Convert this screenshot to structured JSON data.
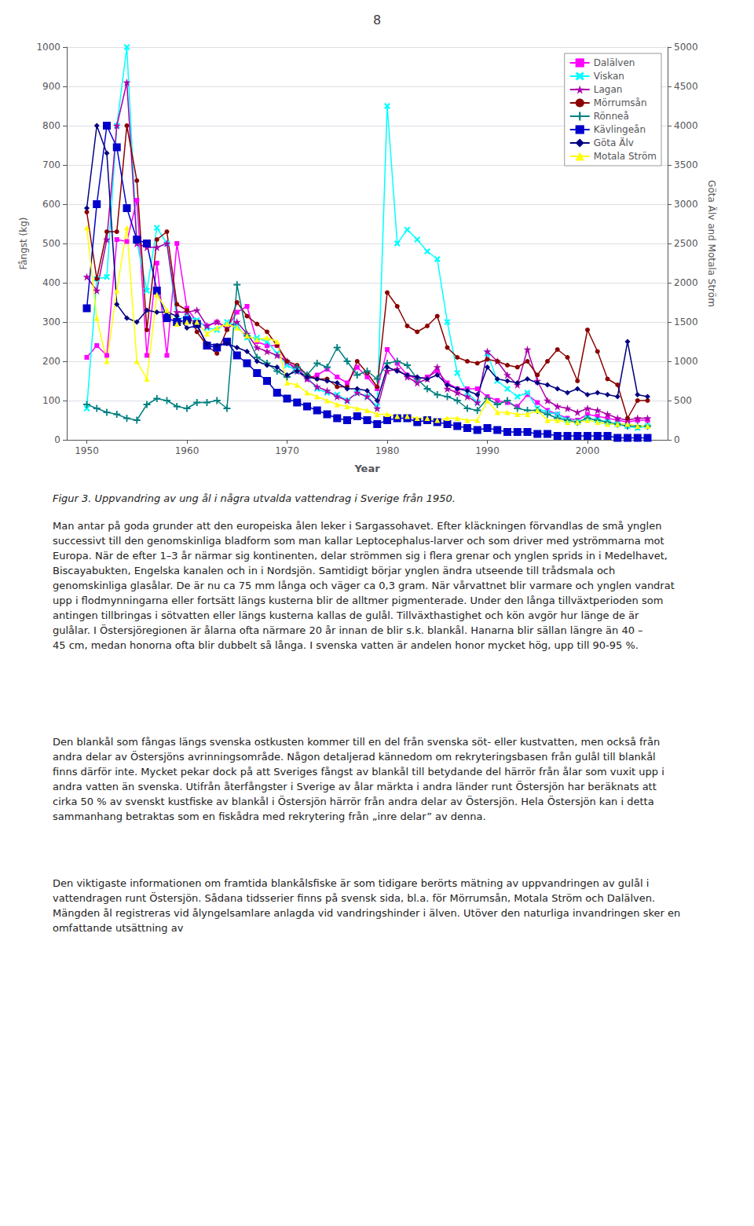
{
  "chart_data": {
    "type": "line",
    "title": "8",
    "annotations": [
      "Figur 3. Uppvandring av ung ål i några utvalda vattendrag i Sverige från 1950.",
      "Man antar på goda grunder att den europeiska ålen leker i Sargassohavet. Efter kläckningen förvandlas de små ynglen successivt till den genomskinliga bladform som man kallar Leptocephalus-larver och som driver med yströmmarna mot Europa. När de efter 1–3 år närmar sig kontinenten, delar strömmen sig i flera grenar och ynglen sprids in i Medelhavet, Biscayabukten, Engelska kanalen och in i Nordsjön. Samtidigt börjar ynglen ändra utseende till trådsmala och genomskinliga glasålar. De är nu ca 75 mm långa och väger ca 0,3 gram. När vårvattnet blir varmare och ynglen vandrat upp i flodmynningarna eller fortsätt längs kusterna blir de alltmer pigmenterade. Under den långa tillväxtperioden som antingen tillbringas i sötvatten eller längs kusterna kallas de gulål. Tillväxthastighet och kön avgör hur länge de är gulålar. I Östersjöregionen är ålarna ofta närmare 20 år innan de blir s.k. blankål. Hanarna blir sällan längre än 40 – 45 cm, medan honorna ofta blir dubbelt så långa. I svenska vatten är andelen honor mycket hög, upp till 90-95 %.",
      "Den blankål som fångas längs svenska ostkusten kommer till en del från svenska söt- eller kustvatten, men också från andra delar av Östersjöns avrinningsområde. Någon detaljerad kännedom om rekryteringsbasen från gulål till blankål finns därför inte. Mycket pekar dock på att Sveriges fångst av blankål till betydande del härrör från ålar som vuxit upp i andra vatten än svenska. Utifrån återfångster i Sverige av ålar märkta i andra länder runt Östersjön har beräknats att cirka 50 % av svenskt kustfiske av blankål i Östersjön härrör från andra delar av Östersjön. Hela Östersjön kan i detta sammanhang betraktas som en fiskådra med rekrytering från „inre delar” av denna.",
      "Den viktigaste informationen om framtida blankålsfiske är som tidigare berörts mätning av uppvandringen av gulål i vattendragen runt Östersjön. Sådana tidsserier finns på svensk sida, bl.a. för Mörrumsån, Motala Ström och Dalälven. Mängden ål registreras vid ålyngelsamlare anlagda vid vandringshinder i älven. Utöver den naturliga invandringen sker en omfattande utsättning av"
    ],
    "xlabel": "Year",
    "ylabel": "Fångst (kg)",
    "y2label": "Göta Älv and Motala Ström",
    "xlim": [
      1948,
      2008
    ],
    "xticks": [
      1950,
      1960,
      1970,
      1980,
      1990,
      2000
    ],
    "ylim": [
      0,
      1000
    ],
    "yticks": [
      0,
      100,
      200,
      300,
      400,
      500,
      600,
      700,
      800,
      900,
      1000
    ],
    "y2lim": [
      0,
      5000
    ],
    "y2ticks": [
      0,
      500,
      1000,
      1500,
      2000,
      2500,
      3000,
      3500,
      4000,
      4500,
      5000
    ],
    "grid": true,
    "legend": "upper right",
    "x": [
      1950,
      1951,
      1952,
      1953,
      1954,
      1955,
      1956,
      1957,
      1958,
      1959,
      1960,
      1961,
      1962,
      1963,
      1964,
      1965,
      1966,
      1967,
      1968,
      1969,
      1970,
      1971,
      1972,
      1973,
      1974,
      1975,
      1976,
      1977,
      1978,
      1979,
      1980,
      1981,
      1982,
      1983,
      1984,
      1985,
      1986,
      1987,
      1988,
      1989,
      1990,
      1991,
      1992,
      1993,
      1994,
      1995,
      1996,
      1997,
      1998,
      1999,
      2000,
      2001,
      2002,
      2003,
      2004,
      2005,
      2006
    ],
    "series": [
      {
        "name": "Dalälven",
        "color": "#ff00ff",
        "marker": "square",
        "values": [
          210,
          240,
          215,
          510,
          505,
          610,
          215,
          450,
          215,
          500,
          335,
          300,
          290,
          300,
          285,
          325,
          340,
          250,
          240,
          240,
          195,
          185,
          155,
          165,
          180,
          160,
          145,
          185,
          160,
          130,
          230,
          195,
          165,
          155,
          160,
          175,
          145,
          130,
          130,
          130,
          110,
          100,
          95,
          85,
          115,
          95,
          75,
          65,
          55,
          50,
          65,
          60,
          55,
          50,
          45,
          50,
          50
        ]
      },
      {
        "name": "Viskan",
        "color": "#00ffff",
        "marker": "x",
        "values": [
          80,
          410,
          415,
          800,
          1000,
          505,
          380,
          540,
          500,
          305,
          315,
          305,
          285,
          280,
          300,
          290,
          260,
          260,
          250,
          220,
          190,
          175,
          160,
          130,
          120,
          115,
          100,
          120,
          110,
          85,
          850,
          500,
          535,
          510,
          480,
          460,
          300,
          170,
          120,
          95,
          220,
          150,
          130,
          110,
          120,
          80,
          70,
          65,
          50,
          45,
          55,
          50,
          45,
          40,
          35,
          30,
          35
        ]
      },
      {
        "name": "Lagan",
        "color": "#aa00aa",
        "marker": "star",
        "values": [
          415,
          380,
          510,
          800,
          910,
          500,
          490,
          490,
          500,
          325,
          325,
          330,
          290,
          300,
          285,
          300,
          270,
          235,
          225,
          215,
          200,
          175,
          155,
          135,
          125,
          110,
          100,
          120,
          110,
          80,
          175,
          180,
          160,
          145,
          155,
          185,
          130,
          120,
          110,
          95,
          225,
          200,
          165,
          140,
          230,
          150,
          100,
          85,
          80,
          70,
          80,
          75,
          65,
          55,
          50,
          55,
          55
        ]
      },
      {
        "name": "Mörrumsån",
        "color": "#8b0000",
        "marker": "circle",
        "values": [
          580,
          410,
          530,
          530,
          800,
          660,
          280,
          510,
          530,
          345,
          330,
          275,
          240,
          220,
          280,
          350,
          315,
          295,
          275,
          240,
          200,
          190,
          165,
          155,
          155,
          135,
          135,
          200,
          170,
          135,
          375,
          340,
          290,
          275,
          290,
          315,
          235,
          210,
          200,
          195,
          205,
          200,
          190,
          185,
          200,
          165,
          200,
          230,
          210,
          150,
          280,
          225,
          155,
          140,
          55,
          100,
          100
        ]
      },
      {
        "name": "Rönneå",
        "color": "#008080",
        "marker": "plus",
        "values": [
          90,
          80,
          70,
          65,
          55,
          50,
          90,
          105,
          100,
          85,
          80,
          95,
          95,
          100,
          80,
          395,
          265,
          210,
          195,
          175,
          160,
          185,
          165,
          195,
          185,
          235,
          200,
          165,
          175,
          155,
          195,
          200,
          190,
          155,
          130,
          115,
          110,
          100,
          80,
          75,
          105,
          90,
          100,
          80,
          75,
          75,
          65,
          55,
          50,
          45,
          55,
          50,
          45,
          40,
          35,
          35,
          35
        ]
      },
      {
        "name": "Kävlingeån",
        "color": "#0000cc",
        "marker": "vline",
        "values": [
          335,
          600,
          800,
          745,
          590,
          510,
          500,
          380,
          310,
          300,
          305,
          295,
          240,
          235,
          250,
          215,
          195,
          170,
          150,
          120,
          105,
          95,
          85,
          75,
          65,
          55,
          50,
          60,
          50,
          40,
          50,
          55,
          55,
          45,
          50,
          45,
          40,
          35,
          30,
          25,
          30,
          25,
          20,
          20,
          20,
          15,
          15,
          10,
          10,
          10,
          10,
          10,
          10,
          5,
          5,
          5,
          5
        ]
      },
      {
        "name": "Göta Älv",
        "color": "#000080",
        "marker": "diamond",
        "axis": "y2",
        "values": [
          2950,
          4000,
          3650,
          1725,
          1550,
          1500,
          1650,
          1625,
          1625,
          1575,
          1425,
          1450,
          1225,
          1200,
          1225,
          1175,
          1125,
          1000,
          950,
          925,
          825,
          875,
          800,
          775,
          750,
          725,
          650,
          650,
          625,
          500,
          925,
          875,
          825,
          800,
          775,
          825,
          700,
          650,
          625,
          575,
          925,
          775,
          750,
          725,
          775,
          725,
          700,
          650,
          600,
          650,
          575,
          600,
          575,
          550,
          1250,
          575,
          550
        ]
      },
      {
        "name": "Motala Ström",
        "color": "#ffff00",
        "marker": "triangle",
        "axis": "y2",
        "values": [
          2700,
          1550,
          1000,
          1900,
          2700,
          1000,
          775,
          1850,
          1650,
          1475,
          1500,
          1500,
          1350,
          1425,
          1475,
          1425,
          1325,
          1275,
          1300,
          1250,
          725,
          700,
          600,
          550,
          500,
          450,
          425,
          400,
          375,
          325,
          325,
          300,
          300,
          275,
          275,
          250,
          275,
          275,
          250,
          250,
          500,
          350,
          350,
          325,
          325,
          375,
          250,
          250,
          225,
          225,
          250,
          225,
          200,
          200,
          200,
          175,
          175
        ]
      }
    ]
  }
}
